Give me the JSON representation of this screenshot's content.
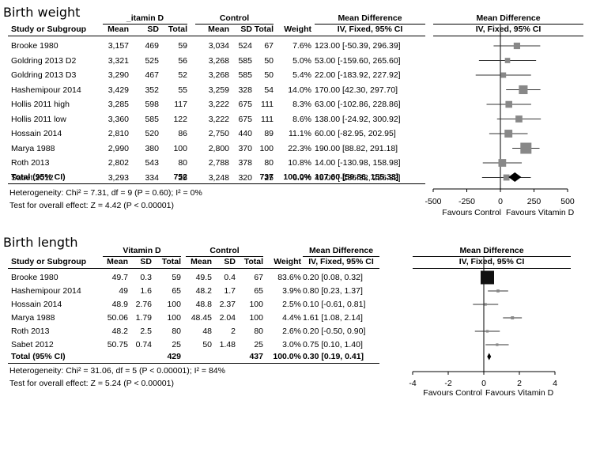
{
  "panels": [
    {
      "title": "Birth weight",
      "group_treat": "_itamin D",
      "group_ctrl": "Control",
      "headers": [
        "Study or Subgroup",
        "Mean",
        "SD",
        "Total",
        "Mean",
        "SD",
        "Total",
        "Weight"
      ],
      "md_header_1": "Mean Difference",
      "md_header_2": "IV, Fixed, 95% CI",
      "plot_header_1": "Mean Difference",
      "plot_header_2": "IV, Fixed, 95% CI",
      "rows": [
        {
          "study": "Brooke 1980",
          "m1": "3,157",
          "sd1": "469",
          "n1": "59",
          "m2": "3,034",
          "sd2": "524",
          "n2": "67",
          "w": "7.6%",
          "ci": "123.00 [-50.39, 296.39]"
        },
        {
          "study": "Goldring 2013 D2",
          "m1": "3,321",
          "sd1": "525",
          "n1": "56",
          "m2": "3,268",
          "sd2": "585",
          "n2": "50",
          "w": "5.0%",
          "ci": "53.00 [-159.60, 265.60]"
        },
        {
          "study": "Goldring 2013 D3",
          "m1": "3,290",
          "sd1": "467",
          "n1": "52",
          "m2": "3,268",
          "sd2": "585",
          "n2": "50",
          "w": "5.4%",
          "ci": "22.00 [-183.92, 227.92]"
        },
        {
          "study": "Hashemipour 2014",
          "m1": "3,429",
          "sd1": "352",
          "n1": "55",
          "m2": "3,259",
          "sd2": "328",
          "n2": "54",
          "w": "14.0%",
          "ci": "170.00 [42.30, 297.70]"
        },
        {
          "study": "Hollis 2011 high",
          "m1": "3,285",
          "sd1": "598",
          "n1": "117",
          "m2": "3,222",
          "sd2": "675",
          "n2": "111",
          "w": "8.3%",
          "ci": "63.00 [-102.86, 228.86]"
        },
        {
          "study": "Hollis 2011 low",
          "m1": "3,360",
          "sd1": "585",
          "n1": "122",
          "m2": "3,222",
          "sd2": "675",
          "n2": "111",
          "w": "8.6%",
          "ci": "138.00 [-24.92, 300.92]"
        },
        {
          "study": "Hossain 2014",
          "m1": "2,810",
          "sd1": "520",
          "n1": "86",
          "m2": "2,750",
          "sd2": "440",
          "n2": "89",
          "w": "11.1%",
          "ci": "60.00 [-82.95, 202.95]"
        },
        {
          "study": "Marya 1988",
          "m1": "2,990",
          "sd1": "380",
          "n1": "100",
          "m2": "2,800",
          "sd2": "370",
          "n2": "100",
          "w": "22.3%",
          "ci": "190.00 [88.82, 291.18]"
        },
        {
          "study": "Roth 2013",
          "m1": "2,802",
          "sd1": "543",
          "n1": "80",
          "m2": "2,788",
          "sd2": "378",
          "n2": "80",
          "w": "10.8%",
          "ci": "14.00 [-130.98, 158.98]"
        },
        {
          "study": "Sabet 2012",
          "m1": "3,293",
          "sd1": "334",
          "n1": "25",
          "m2": "3,248",
          "sd2": "320",
          "n2": "25",
          "w": "6.9%",
          "ci": "45.00 [-136.32, 226.32]"
        }
      ],
      "total": {
        "label": "Total (95% CI)",
        "n1": "752",
        "n2": "737",
        "w": "100.0%",
        "ci": "107.60 [59.86, 155.33]"
      },
      "heterogeneity": "Heterogeneity: Chi² = 7.31, df = 9 (P = 0.60); I² = 0%",
      "overall": "Test for overall effect: Z = 4.42 (P < 0.00001)",
      "ticks": [
        "-500",
        "-250",
        "0",
        "250",
        "500"
      ],
      "favours_left": "Favours Control",
      "favours_right": "Favours Vitamin D"
    },
    {
      "title": "Birth length",
      "group_treat": "Vitamin D",
      "group_ctrl": "Control",
      "headers": [
        "Study or Subgroup",
        "Mean",
        "SD",
        "Total",
        "Mean",
        "SD",
        "Total",
        "Weight"
      ],
      "md_header_1": "Mean Difference",
      "md_header_2": "IV, Fixed, 95% CI",
      "plot_header_1": "Mean Difference",
      "plot_header_2": "IV, Fixed, 95% CI",
      "rows": [
        {
          "study": "Brooke 1980",
          "m1": "49.7",
          "sd1": "0.3",
          "n1": "59",
          "m2": "49.5",
          "sd2": "0.4",
          "n2": "67",
          "w": "83.6%",
          "ci": "0.20 [0.08, 0.32]"
        },
        {
          "study": "Hashemipour 2014",
          "m1": "49",
          "sd1": "1.6",
          "n1": "65",
          "m2": "48.2",
          "sd2": "1.7",
          "n2": "65",
          "w": "3.9%",
          "ci": "0.80 [0.23, 1.37]"
        },
        {
          "study": "Hossain 2014",
          "m1": "48.9",
          "sd1": "2.76",
          "n1": "100",
          "m2": "48.8",
          "sd2": "2.37",
          "n2": "100",
          "w": "2.5%",
          "ci": "0.10 [-0.61, 0.81]"
        },
        {
          "study": "Marya 1988",
          "m1": "50.06",
          "sd1": "1.79",
          "n1": "100",
          "m2": "48.45",
          "sd2": "2.04",
          "n2": "100",
          "w": "4.4%",
          "ci": "1.61 [1.08, 2.14]"
        },
        {
          "study": "Roth 2013",
          "m1": "48.2",
          "sd1": "2.5",
          "n1": "80",
          "m2": "48",
          "sd2": "2",
          "n2": "80",
          "w": "2.6%",
          "ci": "0.20 [-0.50, 0.90]"
        },
        {
          "study": "Sabet 2012",
          "m1": "50.75",
          "sd1": "0.74",
          "n1": "25",
          "m2": "50",
          "sd2": "1.48",
          "n2": "25",
          "w": "3.0%",
          "ci": "0.75 [0.10, 1.40]"
        }
      ],
      "total": {
        "label": "Total (95% CI)",
        "n1": "429",
        "n2": "437",
        "w": "100.0%",
        "ci": "0.30 [0.19, 0.41]"
      },
      "heterogeneity": "Heterogeneity: Chi² = 31.06, df = 5 (P < 0.00001); I² = 84%",
      "overall": "Test for overall effect: Z = 5.24 (P < 0.00001)",
      "ticks": [
        "-4",
        "-2",
        "0",
        "2",
        "4"
      ],
      "favours_left": "Favours Control",
      "favours_right": "Favours Vitamin D"
    }
  ],
  "chart_data": [
    {
      "type": "forest",
      "title": "Birth weight",
      "xlim": [
        -500,
        500
      ],
      "xticks": [
        -500,
        -250,
        0,
        250,
        500
      ],
      "studies": [
        {
          "name": "Brooke 1980",
          "md": 123.0,
          "lo": -50.39,
          "hi": 296.39,
          "weight": 7.6
        },
        {
          "name": "Goldring 2013 D2",
          "md": 53.0,
          "lo": -159.6,
          "hi": 265.6,
          "weight": 5.0
        },
        {
          "name": "Goldring 2013 D3",
          "md": 22.0,
          "lo": -183.92,
          "hi": 227.92,
          "weight": 5.4
        },
        {
          "name": "Hashemipour 2014",
          "md": 170.0,
          "lo": 42.3,
          "hi": 297.7,
          "weight": 14.0
        },
        {
          "name": "Hollis 2011 high",
          "md": 63.0,
          "lo": -102.86,
          "hi": 228.86,
          "weight": 8.3
        },
        {
          "name": "Hollis 2011 low",
          "md": 138.0,
          "lo": -24.92,
          "hi": 300.92,
          "weight": 8.6
        },
        {
          "name": "Hossain 2014",
          "md": 60.0,
          "lo": -82.95,
          "hi": 202.95,
          "weight": 11.1
        },
        {
          "name": "Marya 1988",
          "md": 190.0,
          "lo": 88.82,
          "hi": 291.18,
          "weight": 22.3
        },
        {
          "name": "Roth 2013",
          "md": 14.0,
          "lo": -130.98,
          "hi": 158.98,
          "weight": 10.8
        },
        {
          "name": "Sabet 2012",
          "md": 45.0,
          "lo": -136.32,
          "hi": 226.32,
          "weight": 6.9
        }
      ],
      "pooled": {
        "md": 107.6,
        "lo": 59.86,
        "hi": 155.33
      }
    },
    {
      "type": "forest",
      "title": "Birth length",
      "xlim": [
        -4,
        4
      ],
      "xticks": [
        -4,
        -2,
        0,
        2,
        4
      ],
      "studies": [
        {
          "name": "Brooke 1980",
          "md": 0.2,
          "lo": 0.08,
          "hi": 0.32,
          "weight": 83.6
        },
        {
          "name": "Hashemipour 2014",
          "md": 0.8,
          "lo": 0.23,
          "hi": 1.37,
          "weight": 3.9
        },
        {
          "name": "Hossain 2014",
          "md": 0.1,
          "lo": -0.61,
          "hi": 0.81,
          "weight": 2.5
        },
        {
          "name": "Marya 1988",
          "md": 1.61,
          "lo": 1.08,
          "hi": 2.14,
          "weight": 4.4
        },
        {
          "name": "Roth 2013",
          "md": 0.2,
          "lo": -0.5,
          "hi": 0.9,
          "weight": 2.6
        },
        {
          "name": "Sabet 2012",
          "md": 0.75,
          "lo": 0.1,
          "hi": 1.4,
          "weight": 3.0
        }
      ],
      "pooled": {
        "md": 0.3,
        "lo": 0.19,
        "hi": 0.41
      }
    }
  ]
}
